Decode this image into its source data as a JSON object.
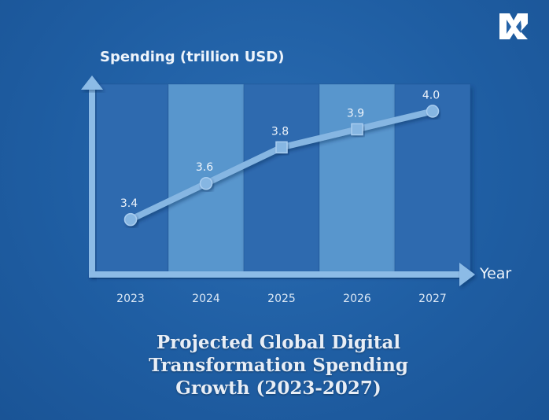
{
  "chart_data": {
    "type": "line",
    "title": "Projected Global Digital Transformation Spending Growth (2023-2027)",
    "title_lines": [
      "Projected Global Digital",
      "Transformation Spending",
      "Growth (2023-2027)"
    ],
    "xlabel": "Year",
    "ylabel": "Spending (trillion USD)",
    "categories": [
      "2023",
      "2024",
      "2025",
      "2026",
      "2027"
    ],
    "values": [
      3.4,
      3.6,
      3.8,
      3.9,
      4.0
    ],
    "data_labels": [
      "3.4",
      "3.6",
      "3.8",
      "3.9",
      "4.0"
    ],
    "marker_shapes": [
      "circle",
      "circle",
      "square",
      "square",
      "circle"
    ],
    "ylim": [
      3.1,
      4.15
    ],
    "grid": false,
    "legend": "none"
  },
  "colors": {
    "background": "#1f5ea3",
    "column_dark": "#2d6aaf",
    "column_light": "#5896cd",
    "line": "#86b6e2",
    "axis": "#8cbbe6",
    "text": "#eef4fb"
  },
  "icons": {
    "brand_logo": "logo-icon"
  }
}
